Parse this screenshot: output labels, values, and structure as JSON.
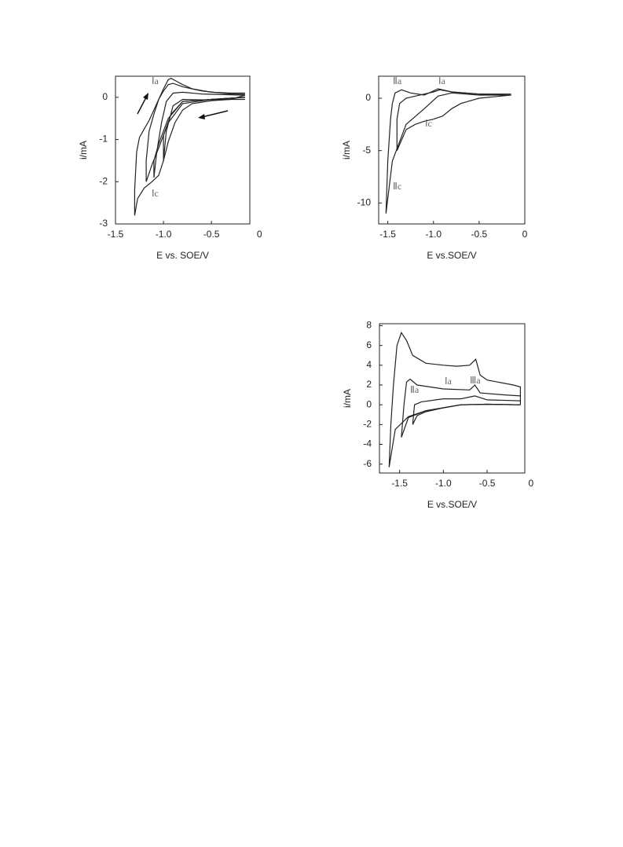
{
  "chart_data": [
    {
      "type": "line",
      "xlabel": "E vs. SOE/V",
      "ylabel": "i/mA",
      "xlim": [
        -1.5,
        -0.1
      ],
      "ylim": [
        -3,
        0.5
      ],
      "xticks": [
        -1.5,
        {
          "value": -1,
          "label": "-1.0"
        },
        -0.5,
        0
      ],
      "yticks": [
        0,
        -1,
        -2,
        -3
      ],
      "annotations": [
        "Ⅰa",
        "Ⅰc"
      ],
      "series": [
        {
          "color": "#222",
          "x": [
            -0.15,
            -0.3,
            -0.5,
            -0.7,
            -0.8,
            -0.88,
            -0.95,
            -1.0,
            -1.05,
            -1.12,
            -1.2,
            -1.27,
            -1.3,
            -1.3,
            -1.28,
            -1.25,
            -1.2,
            -1.15,
            -1.1,
            -1.05,
            -1.0,
            -0.95,
            -0.92,
            -0.88,
            -0.8,
            -0.7,
            -0.5,
            -0.3,
            -0.15
          ],
          "values": [
            0.05,
            -0.05,
            -0.08,
            -0.15,
            -0.3,
            -0.6,
            -1.05,
            -1.5,
            -1.85,
            -2.0,
            -2.15,
            -2.4,
            -2.8,
            -2.2,
            -1.3,
            -0.95,
            -0.75,
            -0.55,
            -0.3,
            -0.05,
            0.2,
            0.42,
            0.45,
            0.4,
            0.3,
            0.2,
            0.12,
            0.1,
            0.1
          ]
        },
        {
          "color": "#222",
          "x": [
            -0.15,
            -0.5,
            -0.8,
            -0.95,
            -1.05,
            -1.12,
            -1.18,
            -1.18,
            -1.15,
            -1.1,
            -1.05,
            -1.0,
            -0.95,
            -0.9,
            -0.8,
            -0.6,
            -0.3,
            -0.15
          ],
          "values": [
            0,
            -0.05,
            -0.15,
            -0.6,
            -1.2,
            -1.6,
            -2.0,
            -1.5,
            -0.8,
            -0.4,
            -0.05,
            0.15,
            0.3,
            0.33,
            0.25,
            0.15,
            0.08,
            0.07
          ]
        },
        {
          "color": "#222",
          "x": [
            -0.15,
            -0.5,
            -0.8,
            -0.95,
            -1.05,
            -1.1,
            -1.1,
            -1.07,
            -1.02,
            -0.97,
            -0.9,
            -0.8,
            -0.6,
            -0.3,
            -0.15
          ],
          "values": [
            0,
            -0.05,
            -0.1,
            -0.5,
            -1.1,
            -1.5,
            -1.9,
            -1.3,
            -0.6,
            -0.1,
            0.1,
            0.12,
            0.08,
            0.06,
            0.05
          ]
        },
        {
          "color": "#222",
          "x": [
            -0.15,
            -0.5,
            -0.8,
            -0.92,
            -1.0,
            -1.0,
            -0.97,
            -0.9,
            -0.8,
            -0.6,
            -0.3,
            -0.15
          ],
          "values": [
            0,
            -0.05,
            -0.1,
            -0.4,
            -0.9,
            -1.5,
            -0.8,
            -0.2,
            -0.05,
            -0.06,
            -0.05,
            -0.05
          ]
        }
      ]
    },
    {
      "type": "line",
      "xlabel": "E vs.SOE/V",
      "ylabel": "i/mA",
      "xlim": [
        -1.6,
        0
      ],
      "ylim": [
        -12,
        2.1
      ],
      "xticks": [
        -1.5,
        {
          "value": -1,
          "label": "-1.0"
        },
        -0.5,
        0
      ],
      "yticks": [
        0,
        -5,
        -10
      ],
      "annotations": [
        "Ⅱa",
        "Ⅰa",
        "Ⅰc",
        "Ⅱc"
      ],
      "series": [
        {
          "color": "#222",
          "x": [
            -0.15,
            -0.5,
            -0.7,
            -0.8,
            -0.9,
            -1.0,
            -1.1,
            -1.2,
            -1.3,
            -1.4,
            -1.4,
            -1.37,
            -1.3,
            -1.2,
            -1.1,
            -1.0,
            -0.93,
            -0.8,
            -0.5,
            -0.15
          ],
          "values": [
            0.3,
            0,
            -0.5,
            -1,
            -1.7,
            -2,
            -2.2,
            -2.5,
            -3,
            -5,
            -2,
            -0.5,
            0,
            0.2,
            0.4,
            0.6,
            0.8,
            0.6,
            0.4,
            0.4
          ]
        },
        {
          "color": "#222",
          "x": [
            -0.15,
            -0.5,
            -0.8,
            -0.95,
            -1.1,
            -1.3,
            -1.45,
            -1.52,
            -1.5,
            -1.47,
            -1.45,
            -1.42,
            -1.35,
            -1.25,
            -1.1,
            -0.95,
            -0.8,
            -0.5,
            -0.15
          ],
          "values": [
            0.3,
            0.3,
            0.5,
            0.2,
            -1,
            -2.5,
            -6,
            -11,
            -6,
            -2,
            -0.5,
            0.5,
            0.8,
            0.5,
            0.3,
            0.9,
            0.6,
            0.4,
            0.3
          ]
        }
      ]
    },
    {
      "type": "line",
      "xlabel": "E vs.SOE/V",
      "ylabel": "i/mA",
      "xlim": [
        -1.73,
        -0.07
      ],
      "ylim": [
        -6.9,
        8.2
      ],
      "xticks": [
        -1.5,
        {
          "value": -1,
          "label": "-1.0"
        },
        -0.5,
        0
      ],
      "yticks": [
        8,
        6,
        4,
        2,
        0,
        -2,
        -4,
        -6
      ],
      "annotations": [
        "Ⅰa",
        "Ⅲa",
        "Ⅱa"
      ],
      "series": [
        {
          "color": "#222",
          "x": [
            -0.12,
            -0.5,
            -0.8,
            -1.0,
            -1.2,
            -1.4,
            -1.55,
            -1.62,
            -1.6,
            -1.57,
            -1.53,
            -1.48,
            -1.42,
            -1.35,
            -1.2,
            -1.0,
            -0.85,
            -0.7,
            -0.63,
            -0.58,
            -0.5,
            -0.2,
            -0.12,
            -0.12
          ],
          "values": [
            0,
            0.05,
            0,
            -0.3,
            -0.6,
            -1.2,
            -2.5,
            -6.3,
            -2,
            2,
            6,
            7.3,
            6.5,
            5,
            4.2,
            4,
            3.9,
            4,
            4.6,
            3,
            2.5,
            2,
            1.8,
            0
          ]
        },
        {
          "color": "#222",
          "x": [
            -0.12,
            -0.5,
            -0.8,
            -1.0,
            -1.2,
            -1.4,
            -1.48,
            -1.45,
            -1.42,
            -1.38,
            -1.3,
            -1.0,
            -0.7,
            -0.64,
            -0.58,
            -0.3,
            -0.12
          ],
          "values": [
            0,
            0.05,
            0,
            -0.3,
            -0.6,
            -1.3,
            -3.3,
            0,
            2.3,
            2.6,
            2,
            1.6,
            1.5,
            2,
            1.2,
            1,
            0.9
          ]
        },
        {
          "color": "#222",
          "x": [
            -0.12,
            -0.5,
            -0.8,
            -1.0,
            -1.2,
            -1.3,
            -1.35,
            -1.33,
            -1.25,
            -1.0,
            -0.8,
            -0.64,
            -0.5,
            -0.12
          ],
          "values": [
            0,
            0.05,
            0,
            -0.3,
            -0.7,
            -1.1,
            -2,
            0,
            0.3,
            0.6,
            0.6,
            0.9,
            0.5,
            0.4
          ]
        }
      ]
    }
  ]
}
